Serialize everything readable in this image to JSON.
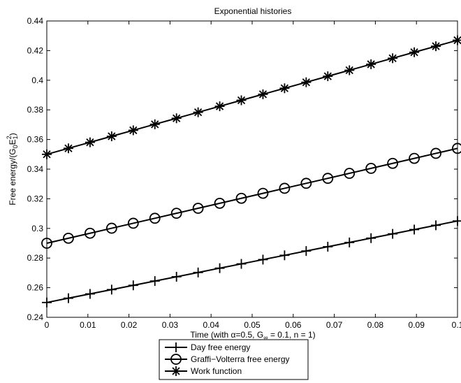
{
  "chart_data": {
    "type": "line",
    "title": "Exponential histories",
    "xlabel": "Time (with α=0.5, G∞ = 0.1, n = 1)",
    "xlabel_parts": {
      "prefix": "Time (with α=0.5, G",
      "sub": "∞",
      "suffix": " = 0.1, n = 1)"
    },
    "ylabel": "Free energy/(G0E1²)",
    "ylabel_parts": {
      "prefix": "Free energy/(G",
      "sub1": "0",
      "mid": "E",
      "sub2": "1",
      "sup2": "2",
      "suffix": ")"
    },
    "xlim": [
      0,
      0.1
    ],
    "ylim": [
      0.24,
      0.44
    ],
    "xticks": [
      0,
      0.01,
      0.02,
      0.03,
      0.04,
      0.05,
      0.06,
      0.07,
      0.08,
      0.09,
      0.1
    ],
    "xtick_labels": [
      "0",
      "0.01",
      "0.02",
      "0.03",
      "0.04",
      "0.05",
      "0.06",
      "0.07",
      "0.08",
      "0.09",
      "0.1"
    ],
    "yticks": [
      0.24,
      0.26,
      0.28,
      0.3,
      0.32,
      0.34,
      0.36,
      0.38,
      0.4,
      0.42,
      0.44
    ],
    "ytick_labels": [
      "0.24",
      "0.26",
      "0.28",
      "0.3",
      "0.32",
      "0.34",
      "0.36",
      "0.38",
      "0.4",
      "0.42",
      "0.44"
    ],
    "grid": false,
    "legend_position": "below-center",
    "series": [
      {
        "name": "Day free energy",
        "marker": "plus",
        "x_start": 0,
        "x_step": 0.005263,
        "count": 20,
        "y_start": 0.25,
        "y_end": 0.305
      },
      {
        "name": "Graffi−Volterra free energy",
        "marker": "circle",
        "x_start": 0,
        "x_step": 0.005263,
        "count": 20,
        "y_start": 0.29,
        "y_end": 0.354
      },
      {
        "name": "Work function",
        "marker": "star",
        "x_start": 0,
        "x_step": 0.005263,
        "count": 20,
        "y_start": 0.35,
        "y_end": 0.427
      }
    ],
    "line_color": "#000000"
  }
}
